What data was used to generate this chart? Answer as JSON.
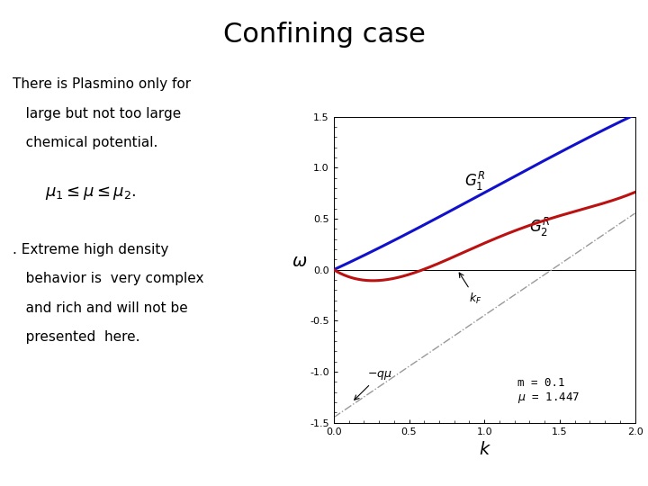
{
  "title": "Confining case",
  "title_fontsize": 22,
  "title_color": "#000000",
  "text_left_line1": "There is Plasmino only for",
  "text_left_line2": "   large but not too large",
  "text_left_line3": "   chemical potential.",
  "formula_text": "$\\mu_1 \\leq \\mu \\leq \\mu_2.$",
  "text_bottom_line1": ". Extreme high density",
  "text_bottom_line2": "   behavior is  very complex",
  "text_bottom_line3": "   and rich and will not be",
  "text_bottom_line4": "   presented  here.",
  "xlabel": "k",
  "ylabel": "$\\omega$",
  "xlim": [
    0.0,
    2.0
  ],
  "ylim": [
    -1.5,
    1.5
  ],
  "xticks": [
    0.0,
    0.5,
    1.0,
    1.5,
    2.0
  ],
  "yticks": [
    -1.5,
    -1.0,
    -0.5,
    0.0,
    0.5,
    1.0,
    1.5
  ],
  "m": 0.1,
  "mu": 1.447,
  "blue_color": "#1111cc",
  "red_color": "#bb1111",
  "dashed_color": "#999999",
  "background_color": "#ffffff",
  "annotation_kF_text": "$k_F$",
  "annotation_qmu_text": "$- q \\mu$",
  "label_G1": "$G_1^R$",
  "label_G2": "$G_2^R$",
  "text_fontsize": 11,
  "formula_fontsize": 13,
  "axis_label_fontsize": 12,
  "tick_fontsize": 8,
  "curve_label_fontsize": 12,
  "annot_fontsize": 9,
  "param_fontsize": 9
}
